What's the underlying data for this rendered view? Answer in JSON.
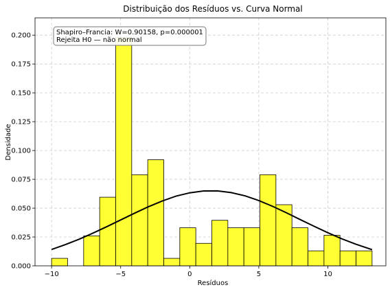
{
  "chart_data": {
    "type": "bar",
    "title": "Distribuição dos Resíduos vs. Curva Normal",
    "xlabel": "Resíduos",
    "ylabel": "Densidade",
    "xlim": [
      -11.2,
      14.2
    ],
    "ylim": [
      0,
      0.215
    ],
    "xticks": [
      -10,
      -5,
      0,
      5,
      10
    ],
    "yticks": [
      0.0,
      0.025,
      0.05,
      0.075,
      0.1,
      0.125,
      0.15,
      0.175,
      0.2
    ],
    "grid": true,
    "histogram": {
      "bin_edges": [
        -10.0,
        -8.84,
        -7.68,
        -6.52,
        -5.36,
        -4.2,
        -3.04,
        -1.88,
        -0.72,
        0.44,
        1.6,
        2.76,
        3.92,
        5.08,
        6.24,
        7.4,
        8.56,
        9.72,
        10.88,
        12.04,
        13.2
      ],
      "values": [
        0.0065,
        0.0,
        0.026,
        0.0595,
        0.198,
        0.079,
        0.092,
        0.0065,
        0.033,
        0.0195,
        0.0395,
        0.033,
        0.033,
        0.079,
        0.053,
        0.033,
        0.013,
        0.0265,
        0.013,
        0.013
      ],
      "fill_color": "#ffff33",
      "edge_color": "#000000"
    },
    "normal_curve": {
      "x": [
        -10,
        -9,
        -8,
        -7,
        -6,
        -5,
        -4,
        -3,
        -2,
        -1,
        0,
        1,
        2,
        3,
        4,
        5,
        6,
        7,
        8,
        9,
        10,
        11,
        12,
        13.2
      ],
      "y": [
        0.0142,
        0.0184,
        0.0231,
        0.0284,
        0.034,
        0.0398,
        0.0456,
        0.0512,
        0.0562,
        0.0604,
        0.0633,
        0.0649,
        0.065,
        0.0635,
        0.0607,
        0.0566,
        0.0516,
        0.046,
        0.0401,
        0.0343,
        0.0287,
        0.0235,
        0.0189,
        0.014
      ],
      "color": "#000000"
    },
    "annotation": {
      "line1": "Shapiro–Francia: W=0.90158, p=0.000001",
      "line2": "Rejeita H0 — não normal"
    }
  }
}
